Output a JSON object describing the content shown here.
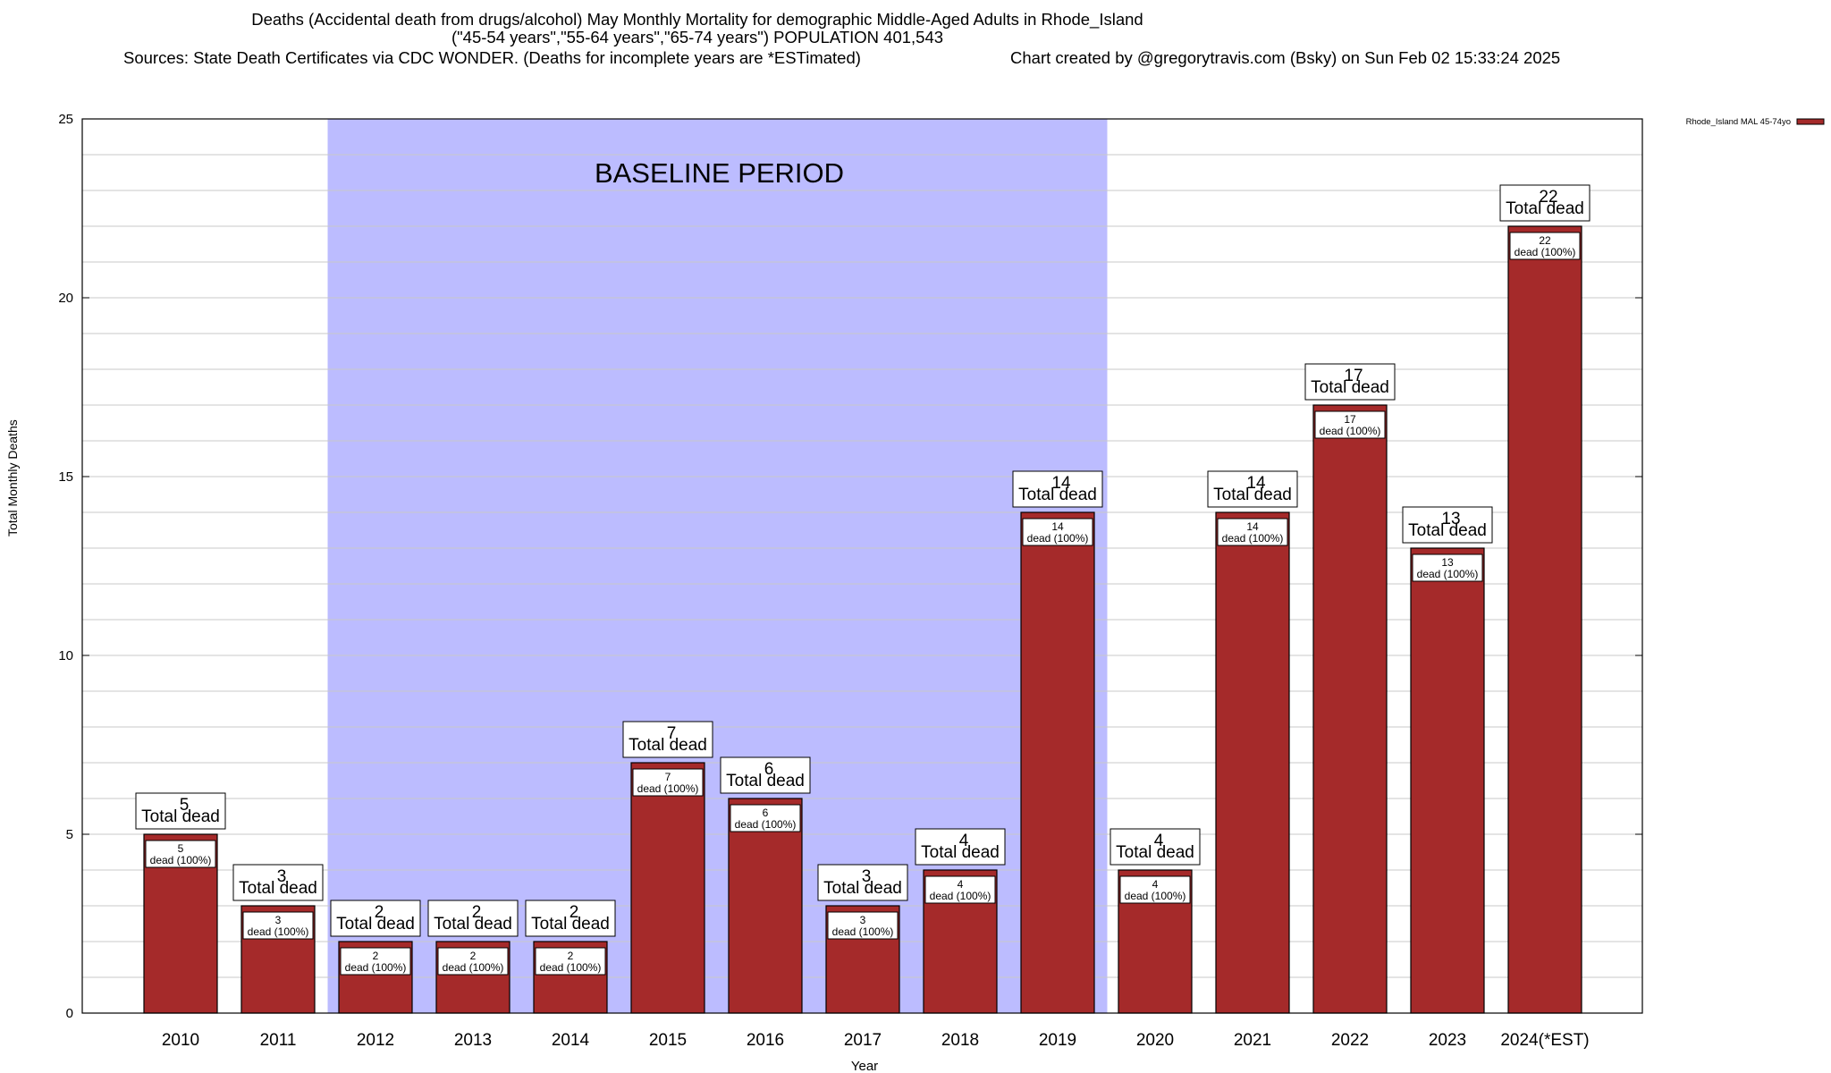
{
  "header": {
    "title_line1": "Deaths (Accidental death from drugs/alcohol) May Monthly Mortality for demographic Middle-Aged Adults in Rhode_Island",
    "title_line2": "(\"45-54 years\",\"55-64 years\",\"65-74 years\") POPULATION 401,543",
    "sources": "Sources: State Death Certificates via CDC WONDER. (Deaths for incomplete years are *ESTimated)",
    "credit": "Chart created by @gregorytravis.com (Bsky) on Sun Feb 02 15:33:24 2025"
  },
  "chart_data": {
    "type": "bar",
    "xlabel": "Year",
    "ylabel": "Total Monthly Deaths",
    "ylim": [
      0,
      25
    ],
    "yticks": [
      0,
      5,
      10,
      15,
      20,
      25
    ],
    "grid": true,
    "legend_position": "top-right",
    "categories": [
      "2010",
      "2011",
      "2012",
      "2013",
      "2014",
      "2015",
      "2016",
      "2017",
      "2018",
      "2019",
      "2020",
      "2021",
      "2022",
      "2023",
      "2024(*EST)"
    ],
    "series": [
      {
        "name": "Rhode_Island MAL 45-74yo",
        "values": [
          5,
          3,
          2,
          2,
          2,
          7,
          6,
          3,
          4,
          14,
          4,
          14,
          17,
          13,
          22
        ]
      }
    ],
    "total_label": "Total dead",
    "inner_label": "dead (100%)",
    "baseline_period": {
      "label": "BASELINE PERIOD",
      "from": "2012",
      "to": "2019"
    },
    "colors": {
      "bar": "#a52a2a",
      "baseline_fill": "#bcbcff",
      "grid": "#c8c8c8"
    }
  }
}
